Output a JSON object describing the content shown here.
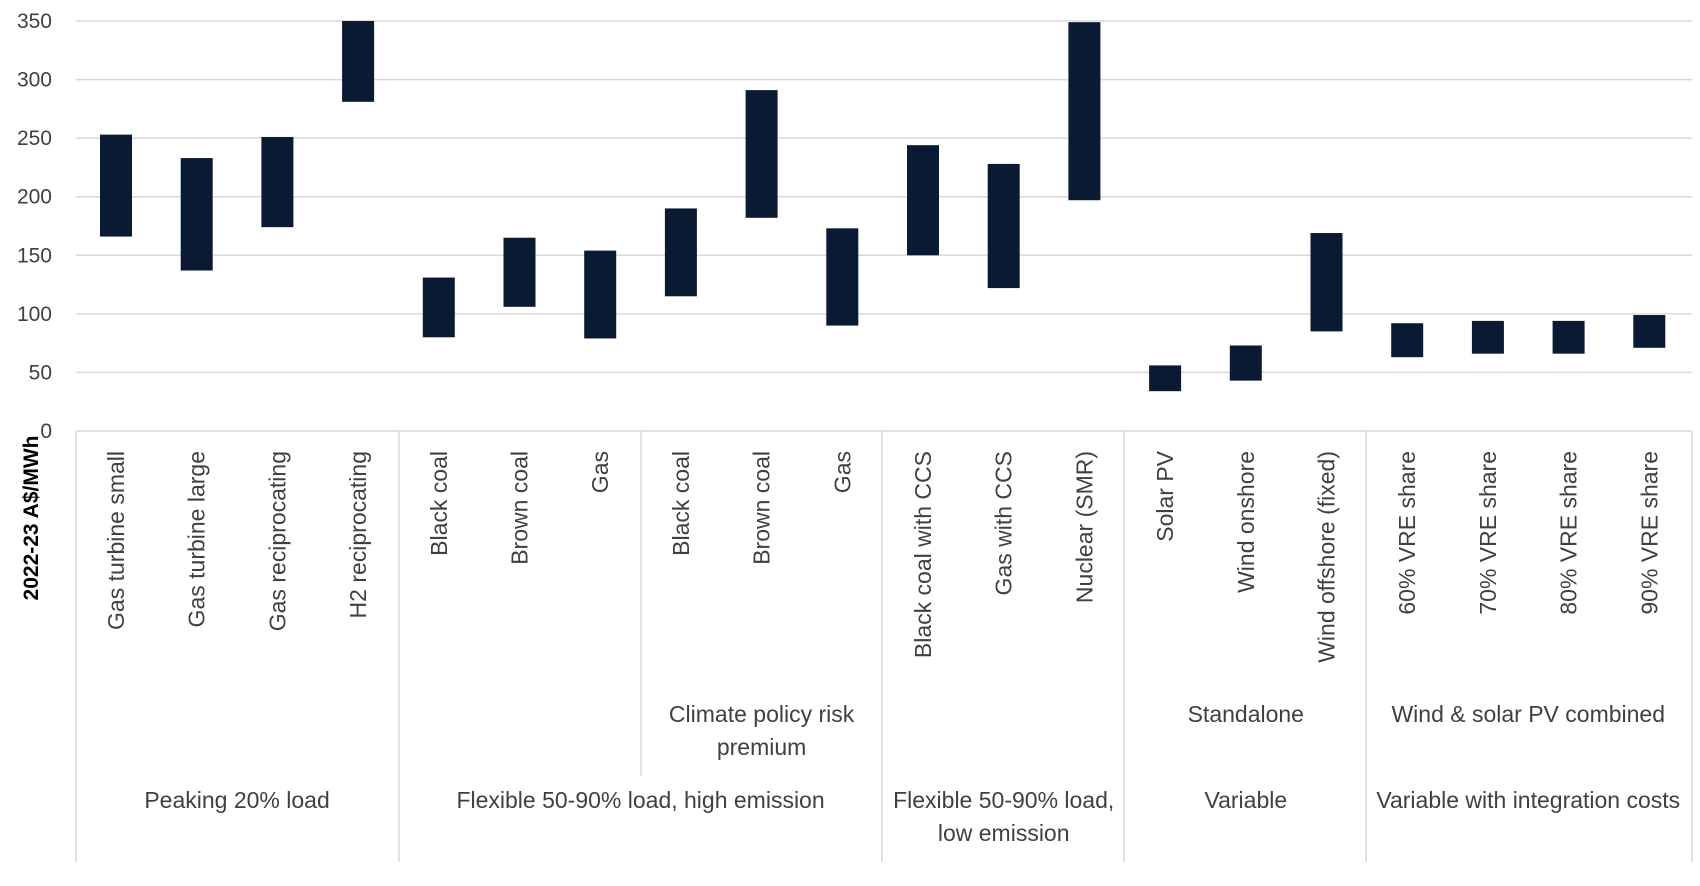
{
  "chart_data": {
    "type": "bar",
    "subtype": "floating-range",
    "title": "",
    "xlabel": "",
    "ylabel": "2022-23 A$/MWh",
    "ylim": [
      0,
      350
    ],
    "yticks": [
      0,
      50,
      100,
      150,
      200,
      250,
      300,
      350
    ],
    "grid": true,
    "bar_color": "#0b1a33",
    "categories": [
      "Gas turbine small",
      "Gas turbine large",
      "Gas reciprocating",
      "H2 reciprocating",
      "Black coal",
      "Brown coal",
      "Gas",
      "Black coal",
      "Brown coal",
      "Gas",
      "Black coal with CCS",
      "Gas with CCS",
      "Nuclear (SMR)",
      "Solar PV",
      "Wind onshore",
      "Wind offshore (fixed)",
      "60% VRE share",
      "70% VRE share",
      "80% VRE share",
      "90% VRE share"
    ],
    "ranges": [
      [
        166,
        253
      ],
      [
        137,
        233
      ],
      [
        174,
        251
      ],
      [
        281,
        350
      ],
      [
        80,
        131
      ],
      [
        106,
        165
      ],
      [
        79,
        154
      ],
      [
        115,
        190
      ],
      [
        182,
        291
      ],
      [
        90,
        173
      ],
      [
        150,
        244
      ],
      [
        122,
        228
      ],
      [
        197,
        349
      ],
      [
        34,
        56
      ],
      [
        43,
        73
      ],
      [
        85,
        169
      ],
      [
        63,
        92
      ],
      [
        66,
        94
      ],
      [
        66,
        94
      ],
      [
        71,
        99
      ]
    ],
    "subgroups": [
      {
        "label": "",
        "start": 0,
        "end": 3
      },
      {
        "label": "",
        "start": 4,
        "end": 6
      },
      {
        "label": "Climate policy risk premium",
        "start": 7,
        "end": 9
      },
      {
        "label": "",
        "start": 10,
        "end": 12
      },
      {
        "label": "Standalone",
        "start": 13,
        "end": 15
      },
      {
        "label": "Wind & solar PV combined",
        "start": 16,
        "end": 19
      }
    ],
    "groups": [
      {
        "label": "Peaking 20% load",
        "start": 0,
        "end": 3
      },
      {
        "label": "Flexible 50-90% load, high emission",
        "start": 4,
        "end": 9
      },
      {
        "label": "Flexible 50-90% load, low emission",
        "start": 10,
        "end": 12
      },
      {
        "label": "Variable",
        "start": 13,
        "end": 15
      },
      {
        "label": "Variable with integration costs",
        "start": 16,
        "end": 19
      }
    ]
  }
}
